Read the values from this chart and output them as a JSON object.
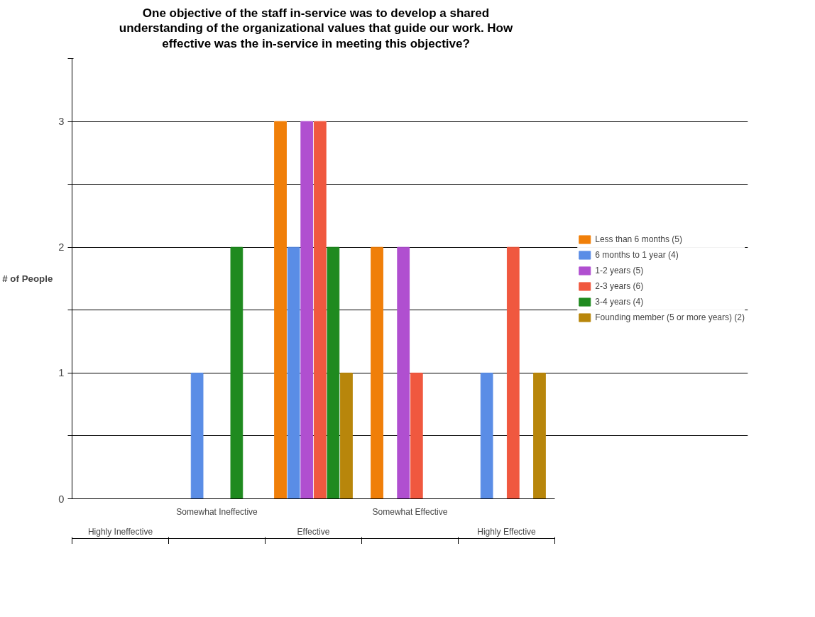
{
  "chart_data": {
    "type": "bar",
    "title": "One objective of the staff in-service was to develop a shared\nunderstanding of the organizational values that guide our work. How\neffective was the in-service in meeting this objective?",
    "ylabel": "# of People",
    "categories": [
      "Highly Ineffective",
      "Somewhat Ineffective",
      "Effective",
      "Somewhat Effective",
      "Highly Effective"
    ],
    "series": [
      {
        "name": "Less than 6 months (5)",
        "color": "#f07f09",
        "values": [
          0,
          0,
          3,
          2,
          0
        ]
      },
      {
        "name": "6 months to 1 year (4)",
        "color": "#5a8de6",
        "values": [
          0,
          1,
          2,
          0,
          1
        ]
      },
      {
        "name": "1-2 years (5)",
        "color": "#b04fd0",
        "values": [
          0,
          0,
          3,
          2,
          0
        ]
      },
      {
        "name": "2-3 years (6)",
        "color": "#f0583f",
        "values": [
          0,
          0,
          3,
          1,
          2
        ]
      },
      {
        "name": "3-4 years (4)",
        "color": "#1f8a1f",
        "values": [
          0,
          2,
          2,
          0,
          0
        ]
      },
      {
        "name": "Founding member (5 or more years) (2)",
        "color": "#b8860b",
        "values": [
          0,
          0,
          1,
          0,
          1
        ]
      }
    ],
    "ylim": [
      0,
      3.5
    ],
    "yticks": [
      0,
      {
        "value": 0.5,
        "label": null
      },
      1,
      {
        "value": 1.5,
        "label": null
      },
      2,
      {
        "value": 2.5,
        "label": null
      },
      3,
      {
        "value": 3.5,
        "label": null
      }
    ],
    "grid": "y",
    "legend": "right"
  }
}
